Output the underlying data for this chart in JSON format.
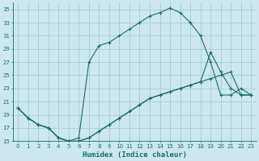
{
  "xlabel": "Humidex (Indice chaleur)",
  "bg_color": "#cce8ec",
  "grid_color": "#a0c8cc",
  "line_color": "#1a6b6b",
  "xlim": [
    -0.5,
    23.5
  ],
  "ylim": [
    15,
    36
  ],
  "xticks": [
    0,
    1,
    2,
    3,
    4,
    5,
    6,
    7,
    8,
    9,
    10,
    11,
    12,
    13,
    14,
    15,
    16,
    17,
    18,
    19,
    20,
    21,
    22,
    23
  ],
  "yticks": [
    15,
    17,
    19,
    21,
    23,
    25,
    27,
    29,
    31,
    33,
    35
  ],
  "line1_x": [
    0,
    1,
    2,
    3,
    4,
    5,
    6,
    7,
    8,
    9,
    10,
    11,
    12,
    13,
    14,
    15,
    16,
    17,
    18,
    19,
    20,
    21,
    22,
    23
  ],
  "line1_y": [
    20,
    18.5,
    17.5,
    17,
    15.5,
    15,
    15,
    15.5,
    16.5,
    17.5,
    18.5,
    19.5,
    20.5,
    21.5,
    22,
    22.5,
    23,
    23.5,
    24,
    24.5,
    25,
    25.5,
    22,
    22
  ],
  "line2_x": [
    0,
    1,
    2,
    3,
    4,
    5,
    6,
    7,
    8,
    9,
    10,
    11,
    12,
    13,
    14,
    15,
    16,
    17,
    18,
    19,
    20,
    21,
    22,
    23
  ],
  "line2_y": [
    20,
    18.5,
    17.5,
    17,
    15.5,
    15,
    15.5,
    27,
    29.5,
    30,
    31,
    32,
    33,
    34,
    34.5,
    35.2,
    34.5,
    33,
    31,
    27,
    22,
    22,
    23,
    22
  ],
  "line3_x": [
    0,
    1,
    2,
    3,
    4,
    5,
    6,
    7,
    8,
    9,
    10,
    11,
    12,
    13,
    14,
    15,
    16,
    17,
    18,
    19,
    20,
    21,
    22,
    23
  ],
  "line3_y": [
    20,
    18.5,
    17.5,
    17,
    15.5,
    15,
    15,
    15.5,
    16.5,
    17.5,
    18.5,
    19.5,
    20.5,
    21.5,
    22,
    22.5,
    23,
    23.5,
    24,
    28.5,
    25.5,
    23,
    22,
    22
  ]
}
